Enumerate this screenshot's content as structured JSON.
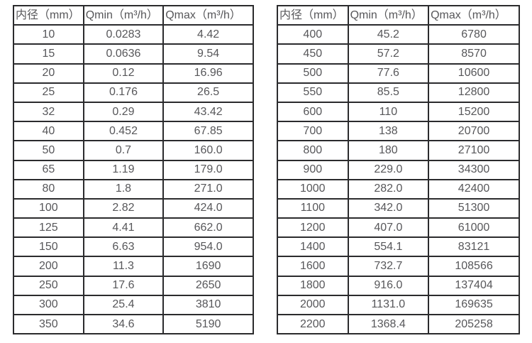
{
  "tables": {
    "left": {
      "title": "small-diameter-flow-table",
      "columns": [
        "内径（mm）",
        "Qmin（m³/h）",
        "Qmax（m³/h）"
      ],
      "rows": [
        [
          "10",
          "0.0283",
          "4.42"
        ],
        [
          "15",
          "0.0636",
          "9.54"
        ],
        [
          "20",
          "0.12",
          "16.96"
        ],
        [
          "25",
          "0.176",
          "26.5"
        ],
        [
          "32",
          "0.29",
          "43.42"
        ],
        [
          "40",
          "0.452",
          "67.85"
        ],
        [
          "50",
          "0.7",
          "160.0"
        ],
        [
          "65",
          "1.19",
          "179.0"
        ],
        [
          "80",
          "1.8",
          "271.0"
        ],
        [
          "100",
          "2.82",
          "424.0"
        ],
        [
          "125",
          "4.41",
          "662.0"
        ],
        [
          "150",
          "6.63",
          "954.0"
        ],
        [
          "200",
          "11.3",
          "1690"
        ],
        [
          "250",
          "17.6",
          "2650"
        ],
        [
          "300",
          "25.4",
          "3810"
        ],
        [
          "350",
          "34.6",
          "5190"
        ]
      ]
    },
    "right": {
      "title": "large-diameter-flow-table",
      "columns": [
        "内径（mm）",
        "Qmin（m³/h）",
        "Qmax（m³/h）"
      ],
      "rows": [
        [
          "400",
          "45.2",
          "6780"
        ],
        [
          "450",
          "57.2",
          "8570"
        ],
        [
          "500",
          "77.6",
          "10600"
        ],
        [
          "550",
          "85.5",
          "12800"
        ],
        [
          "600",
          "110",
          "15200"
        ],
        [
          "700",
          "138",
          "20700"
        ],
        [
          "800",
          "180",
          "27100"
        ],
        [
          "900",
          "229.0",
          "34300"
        ],
        [
          "1000",
          "282.0",
          "42400"
        ],
        [
          "1100",
          "342.0",
          "51300"
        ],
        [
          "1200",
          "407.0",
          "61000"
        ],
        [
          "1400",
          "554.1",
          "83121"
        ],
        [
          "1600",
          "732.7",
          "108566"
        ],
        [
          "1800",
          "916.0",
          "137404"
        ],
        [
          "2000",
          "1131.0",
          "169635"
        ],
        [
          "2200",
          "1368.4",
          "205258"
        ]
      ]
    }
  },
  "colors": {
    "border": "#2b2b2d",
    "text": "#57575a",
    "background": "#ffffff"
  }
}
